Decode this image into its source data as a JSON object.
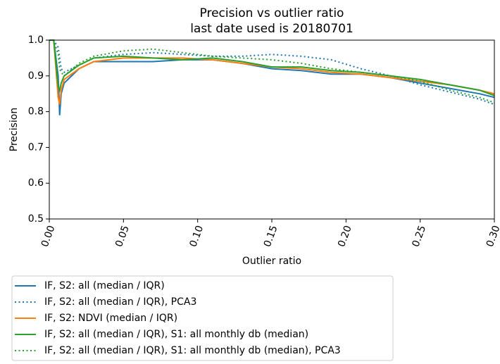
{
  "chart_data": {
    "type": "line",
    "title": "Precision vs outlier ratio",
    "subtitle": "last date used is 20180701",
    "x_label": "Outlier ratio",
    "y_label": "Precision",
    "x": [
      0.0,
      0.003,
      0.006,
      0.007,
      0.008,
      0.01,
      0.02,
      0.03,
      0.05,
      0.07,
      0.09,
      0.11,
      0.13,
      0.15,
      0.17,
      0.19,
      0.21,
      0.23,
      0.25,
      0.27,
      0.29,
      0.3
    ],
    "series": [
      {
        "name": "IF, S2: all (median / IQR)",
        "color": "#1f77b4",
        "linestyle": "solid",
        "values": [
          1.0,
          1.0,
          0.9,
          0.79,
          0.85,
          0.88,
          0.92,
          0.94,
          0.94,
          0.94,
          0.945,
          0.945,
          0.935,
          0.92,
          0.915,
          0.905,
          0.905,
          0.895,
          0.88,
          0.865,
          0.85,
          0.84
        ]
      },
      {
        "name": "IF, S2: all (median / IQR), PCA3",
        "color": "#1f77b4",
        "linestyle": "dotted",
        "values": [
          1.0,
          1.0,
          0.98,
          0.95,
          0.92,
          0.91,
          0.93,
          0.95,
          0.96,
          0.965,
          0.96,
          0.955,
          0.955,
          0.96,
          0.955,
          0.945,
          0.92,
          0.9,
          0.875,
          0.855,
          0.835,
          0.82
        ]
      },
      {
        "name": "IF, S2: NDVI (median / IQR)",
        "color": "#ff7f0e",
        "linestyle": "solid",
        "values": [
          1.0,
          1.0,
          0.84,
          0.82,
          0.86,
          0.89,
          0.92,
          0.94,
          0.95,
          0.95,
          0.95,
          0.945,
          0.935,
          0.925,
          0.92,
          0.91,
          0.905,
          0.895,
          0.885,
          0.875,
          0.86,
          0.85
        ]
      },
      {
        "name": "IF, S2: all (median / IQR), S1: all monthly db (median)",
        "color": "#2ca02c",
        "linestyle": "solid",
        "values": [
          1.0,
          1.0,
          0.87,
          0.86,
          0.88,
          0.9,
          0.93,
          0.95,
          0.955,
          0.95,
          0.945,
          0.95,
          0.94,
          0.925,
          0.925,
          0.915,
          0.91,
          0.9,
          0.89,
          0.875,
          0.86,
          0.845
        ]
      },
      {
        "name": "IF, S2: all (median / IQR), S1: all monthly db (median), PCA3",
        "color": "#2ca02c",
        "linestyle": "dotted",
        "values": [
          1.0,
          1.0,
          0.96,
          0.92,
          0.91,
          0.9,
          0.935,
          0.955,
          0.97,
          0.975,
          0.965,
          0.955,
          0.95,
          0.945,
          0.935,
          0.92,
          0.91,
          0.9,
          0.885,
          0.86,
          0.84,
          0.825
        ]
      }
    ],
    "xlim": [
      0,
      0.3
    ],
    "xticks": [
      {
        "value": 0,
        "label": "0.00"
      },
      0.05,
      {
        "value": 0.1,
        "label": "0.10"
      },
      0.15,
      {
        "value": 0.2,
        "label": "0.20"
      },
      0.25,
      {
        "value": 0.3,
        "label": "0.30"
      }
    ],
    "ylim": [
      0.5,
      1.0
    ],
    "yticks": [
      0.5,
      0.6,
      0.7,
      0.8,
      0.9,
      {
        "value": 1.0,
        "label": "1.0"
      }
    ],
    "legend": "below"
  }
}
